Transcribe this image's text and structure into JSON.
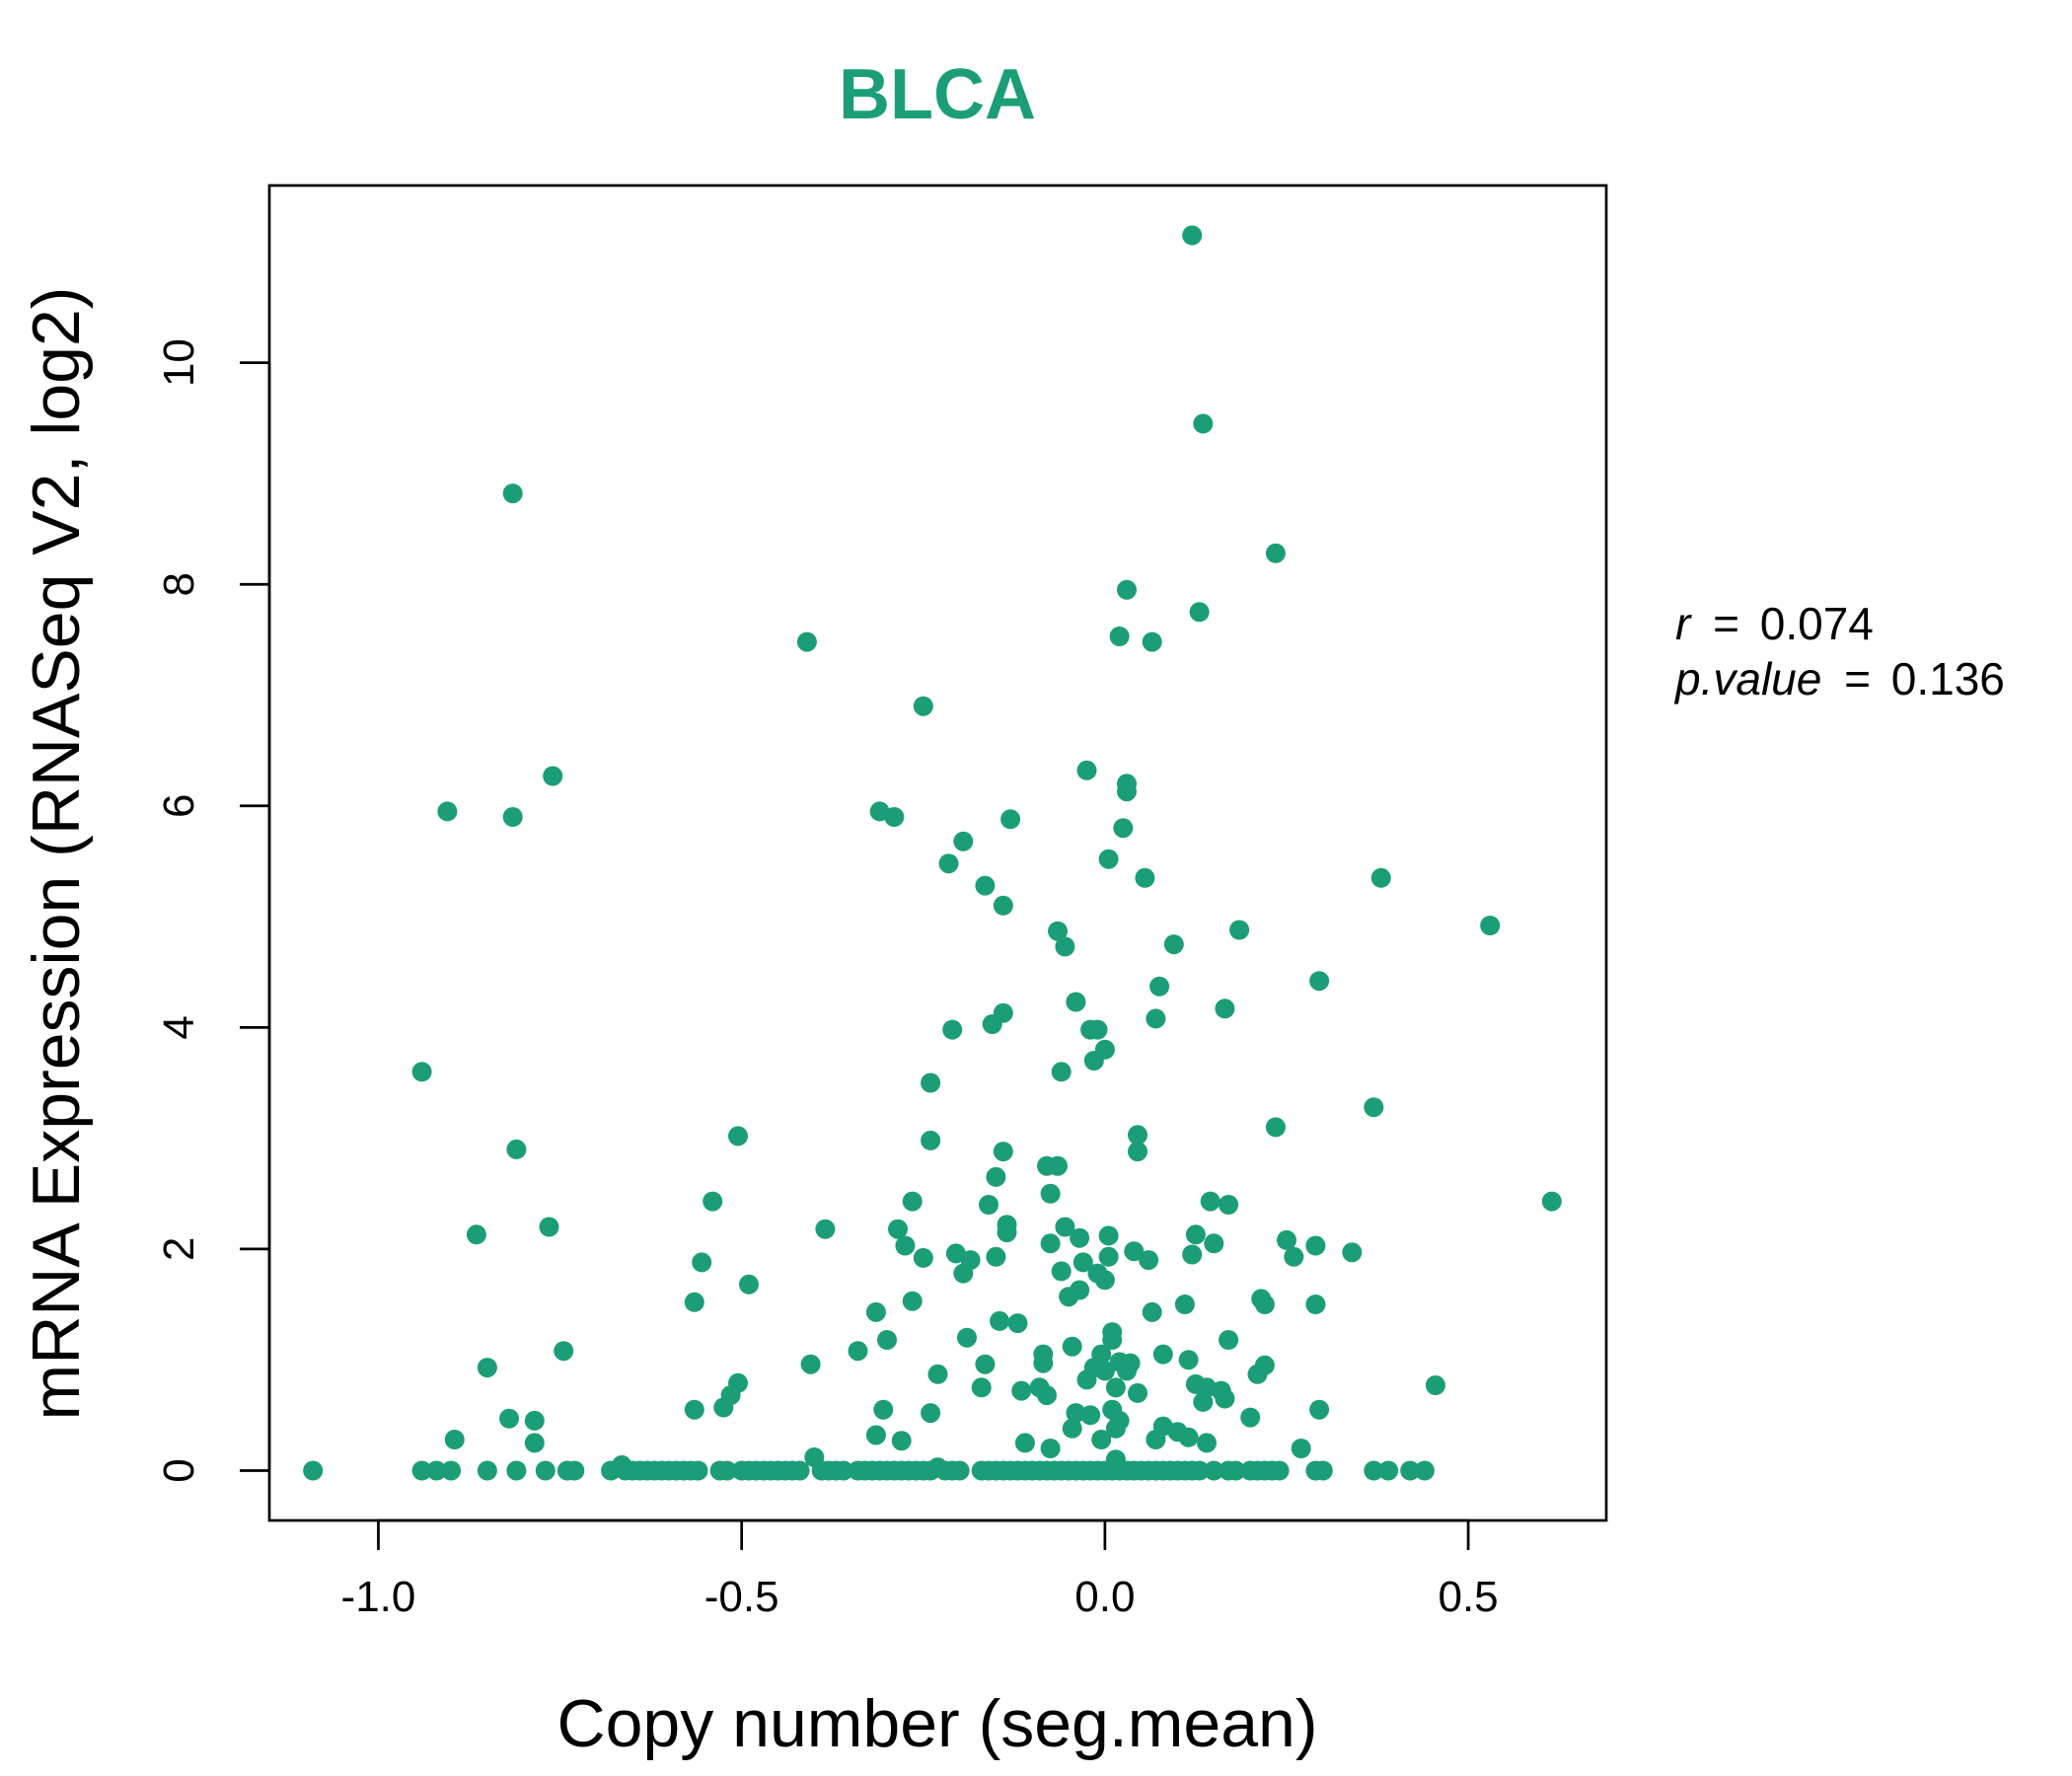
{
  "chart_data": {
    "type": "scatter",
    "title": "BLCA",
    "xlabel": "Copy number (seg.mean)",
    "ylabel": "mRNA Expression (RNASeq V2, log2)",
    "xlim": [
      -1.15,
      0.69
    ],
    "ylim": [
      -0.45,
      11.6
    ],
    "xticks": [
      -1.0,
      -0.5,
      0.0,
      0.5
    ],
    "xtick_labels": [
      "-1.0",
      "-0.5",
      "0.0",
      "0.5"
    ],
    "yticks": [
      0,
      2,
      4,
      6,
      8,
      10
    ],
    "ytick_labels": [
      "0",
      "2",
      "4",
      "6",
      "8",
      "10"
    ],
    "point_color": "#1b9e77",
    "grid": false,
    "legend": "none",
    "stats": {
      "r_label": "r",
      "r_value": "0.074",
      "p_label": "p.value",
      "p_value": "0.136",
      "equals": "="
    },
    "points": [
      [
        -1.09,
        0
      ],
      [
        -0.94,
        0
      ],
      [
        -0.92,
        0
      ],
      [
        -0.9,
        0
      ],
      [
        -0.85,
        0
      ],
      [
        -0.81,
        0
      ],
      [
        -0.77,
        0
      ],
      [
        -0.74,
        0
      ],
      [
        -0.73,
        0
      ],
      [
        -0.68,
        0
      ],
      [
        -0.665,
        0.05
      ],
      [
        -0.66,
        0
      ],
      [
        -0.65,
        0
      ],
      [
        -0.64,
        0
      ],
      [
        -0.63,
        0
      ],
      [
        -0.62,
        0
      ],
      [
        -0.61,
        0
      ],
      [
        -0.6,
        0
      ],
      [
        -0.59,
        0
      ],
      [
        -0.58,
        0
      ],
      [
        -0.57,
        0
      ],
      [
        -0.56,
        0
      ],
      [
        -0.53,
        0
      ],
      [
        -0.52,
        0
      ],
      [
        -0.5,
        0
      ],
      [
        -0.49,
        0
      ],
      [
        -0.48,
        0
      ],
      [
        -0.47,
        0
      ],
      [
        -0.46,
        0
      ],
      [
        -0.45,
        0
      ],
      [
        -0.44,
        0
      ],
      [
        -0.43,
        0
      ],
      [
        -0.42,
        0
      ],
      [
        -0.4,
        0.12
      ],
      [
        -0.39,
        0
      ],
      [
        -0.38,
        0
      ],
      [
        -0.37,
        0
      ],
      [
        -0.36,
        0
      ],
      [
        -0.34,
        0
      ],
      [
        -0.33,
        0
      ],
      [
        -0.32,
        0
      ],
      [
        -0.31,
        0
      ],
      [
        -0.3,
        0
      ],
      [
        -0.29,
        0
      ],
      [
        -0.28,
        0
      ],
      [
        -0.27,
        0
      ],
      [
        -0.26,
        0
      ],
      [
        -0.25,
        0
      ],
      [
        -0.24,
        0
      ],
      [
        -0.23,
        0.03
      ],
      [
        -0.22,
        0
      ],
      [
        -0.21,
        0
      ],
      [
        -0.2,
        0
      ],
      [
        -0.17,
        0
      ],
      [
        -0.16,
        0
      ],
      [
        -0.15,
        0
      ],
      [
        -0.14,
        0
      ],
      [
        -0.13,
        0
      ],
      [
        -0.12,
        0
      ],
      [
        -0.11,
        0
      ],
      [
        -0.1,
        0
      ],
      [
        -0.09,
        0
      ],
      [
        -0.08,
        0
      ],
      [
        -0.07,
        0
      ],
      [
        -0.06,
        0
      ],
      [
        -0.05,
        0
      ],
      [
        -0.04,
        0
      ],
      [
        -0.03,
        0
      ],
      [
        -0.02,
        0
      ],
      [
        -0.01,
        0
      ],
      [
        0.0,
        0
      ],
      [
        0.01,
        0
      ],
      [
        0.02,
        0
      ],
      [
        0.03,
        0
      ],
      [
        0.04,
        0
      ],
      [
        0.05,
        0
      ],
      [
        0.06,
        0
      ],
      [
        0.07,
        0
      ],
      [
        0.08,
        0
      ],
      [
        0.09,
        0
      ],
      [
        0.1,
        0
      ],
      [
        0.11,
        0
      ],
      [
        0.12,
        0
      ],
      [
        0.13,
        0
      ],
      [
        0.15,
        0
      ],
      [
        0.17,
        0
      ],
      [
        0.18,
        0
      ],
      [
        0.2,
        0
      ],
      [
        0.21,
        0
      ],
      [
        0.22,
        0
      ],
      [
        0.23,
        0
      ],
      [
        0.24,
        0
      ],
      [
        0.29,
        0
      ],
      [
        0.3,
        0
      ],
      [
        0.37,
        0
      ],
      [
        0.39,
        0
      ],
      [
        0.42,
        0
      ],
      [
        0.44,
        0
      ],
      [
        -0.94,
        3.6
      ],
      [
        -0.905,
        5.95
      ],
      [
        -0.895,
        0.28
      ],
      [
        -0.865,
        2.13
      ],
      [
        -0.85,
        0.93
      ],
      [
        -0.82,
        0.47
      ],
      [
        -0.815,
        8.82
      ],
      [
        -0.815,
        5.9
      ],
      [
        -0.81,
        2.9
      ],
      [
        -0.785,
        0.45
      ],
      [
        -0.785,
        0.25
      ],
      [
        -0.765,
        2.2
      ],
      [
        -0.76,
        6.27
      ],
      [
        -0.745,
        1.08
      ],
      [
        -0.565,
        0.55
      ],
      [
        -0.565,
        1.52
      ],
      [
        -0.555,
        1.88
      ],
      [
        -0.54,
        2.43
      ],
      [
        -0.525,
        0.57
      ],
      [
        -0.515,
        0.68
      ],
      [
        -0.505,
        0.79
      ],
      [
        -0.505,
        3.02
      ],
      [
        -0.49,
        1.68
      ],
      [
        -0.41,
        7.48
      ],
      [
        -0.405,
        0.96
      ],
      [
        -0.385,
        2.18
      ],
      [
        -0.34,
        1.08
      ],
      [
        -0.315,
        0.32
      ],
      [
        -0.315,
        1.43
      ],
      [
        -0.31,
        5.95
      ],
      [
        -0.305,
        0.55
      ],
      [
        -0.3,
        1.18
      ],
      [
        -0.29,
        5.9
      ],
      [
        -0.285,
        2.18
      ],
      [
        -0.28,
        0.27
      ],
      [
        -0.275,
        2.03
      ],
      [
        -0.265,
        2.43
      ],
      [
        -0.265,
        1.53
      ],
      [
        -0.25,
        1.92
      ],
      [
        -0.25,
        6.9
      ],
      [
        -0.24,
        3.5
      ],
      [
        -0.24,
        2.98
      ],
      [
        -0.24,
        0.52
      ],
      [
        -0.23,
        0.87
      ],
      [
        -0.215,
        5.48
      ],
      [
        -0.21,
        3.98
      ],
      [
        -0.205,
        1.96
      ],
      [
        -0.195,
        5.68
      ],
      [
        -0.195,
        1.78
      ],
      [
        -0.19,
        1.2
      ],
      [
        -0.185,
        1.9
      ],
      [
        -0.17,
        0.75
      ],
      [
        -0.165,
        0.96
      ],
      [
        -0.165,
        5.28
      ],
      [
        -0.16,
        2.4
      ],
      [
        -0.155,
        4.03
      ],
      [
        -0.15,
        1.93
      ],
      [
        -0.15,
        2.65
      ],
      [
        -0.145,
        1.35
      ],
      [
        -0.14,
        2.88
      ],
      [
        -0.14,
        5.1
      ],
      [
        -0.14,
        4.13
      ],
      [
        -0.135,
        2.22
      ],
      [
        -0.135,
        2.15
      ],
      [
        -0.13,
        5.88
      ],
      [
        -0.12,
        1.33
      ],
      [
        -0.115,
        0.72
      ],
      [
        -0.11,
        0.25
      ],
      [
        -0.09,
        0.75
      ],
      [
        -0.085,
        1.05
      ],
      [
        -0.085,
        0.97
      ],
      [
        -0.08,
        2.75
      ],
      [
        -0.08,
        0.68
      ],
      [
        -0.075,
        0.2
      ],
      [
        -0.075,
        2.5
      ],
      [
        -0.075,
        2.05
      ],
      [
        -0.065,
        2.75
      ],
      [
        -0.065,
        4.87
      ],
      [
        -0.06,
        3.6
      ],
      [
        -0.06,
        1.8
      ],
      [
        -0.055,
        4.73
      ],
      [
        -0.055,
        2.2
      ],
      [
        -0.05,
        1.57
      ],
      [
        -0.045,
        0.38
      ],
      [
        -0.045,
        1.12
      ],
      [
        -0.04,
        0.52
      ],
      [
        -0.04,
        4.23
      ],
      [
        -0.035,
        2.1
      ],
      [
        -0.035,
        1.63
      ],
      [
        -0.03,
        1.88
      ],
      [
        -0.025,
        6.32
      ],
      [
        -0.025,
        0.82
      ],
      [
        -0.02,
        3.98
      ],
      [
        -0.02,
        0.5
      ],
      [
        -0.015,
        3.7
      ],
      [
        -0.015,
        0.93
      ],
      [
        -0.01,
        3.98
      ],
      [
        -0.01,
        1.78
      ],
      [
        -0.005,
        1.05
      ],
      [
        -0.005,
        0.28
      ],
      [
        0.0,
        3.8
      ],
      [
        0.0,
        1.72
      ],
      [
        0.0,
        0.9
      ],
      [
        0.005,
        5.52
      ],
      [
        0.005,
        1.93
      ],
      [
        0.005,
        2.12
      ],
      [
        0.01,
        1.25
      ],
      [
        0.01,
        1.18
      ],
      [
        0.01,
        0.55
      ],
      [
        0.015,
        0.75
      ],
      [
        0.015,
        0.38
      ],
      [
        0.015,
        0.1
      ],
      [
        0.02,
        7.53
      ],
      [
        0.02,
        0.98
      ],
      [
        0.02,
        0.45
      ],
      [
        0.025,
        5.8
      ],
      [
        0.03,
        6.2
      ],
      [
        0.03,
        6.13
      ],
      [
        0.03,
        7.95
      ],
      [
        0.03,
        0.9
      ],
      [
        0.035,
        0.97
      ],
      [
        0.04,
        1.98
      ],
      [
        0.045,
        0.7
      ],
      [
        0.045,
        3.03
      ],
      [
        0.045,
        2.88
      ],
      [
        0.055,
        5.35
      ],
      [
        0.06,
        1.9
      ],
      [
        0.065,
        1.43
      ],
      [
        0.065,
        7.48
      ],
      [
        0.07,
        4.08
      ],
      [
        0.07,
        0.28
      ],
      [
        0.075,
        4.37
      ],
      [
        0.08,
        1.05
      ],
      [
        0.08,
        0.4
      ],
      [
        0.095,
        4.75
      ],
      [
        0.1,
        0.35
      ],
      [
        0.11,
        1.5
      ],
      [
        0.115,
        0.3
      ],
      [
        0.115,
        1.0
      ],
      [
        0.12,
        11.15
      ],
      [
        0.12,
        1.95
      ],
      [
        0.125,
        0.78
      ],
      [
        0.125,
        2.13
      ],
      [
        0.13,
        7.75
      ],
      [
        0.135,
        9.45
      ],
      [
        0.135,
        0.62
      ],
      [
        0.14,
        0.75
      ],
      [
        0.14,
        0.25
      ],
      [
        0.145,
        2.43
      ],
      [
        0.15,
        2.05
      ],
      [
        0.16,
        0.72
      ],
      [
        0.165,
        0.65
      ],
      [
        0.165,
        4.17
      ],
      [
        0.17,
        1.18
      ],
      [
        0.17,
        2.4
      ],
      [
        0.185,
        4.88
      ],
      [
        0.2,
        0.48
      ],
      [
        0.21,
        0.87
      ],
      [
        0.215,
        1.55
      ],
      [
        0.22,
        1.5
      ],
      [
        0.22,
        0.95
      ],
      [
        0.235,
        8.28
      ],
      [
        0.235,
        3.1
      ],
      [
        0.25,
        2.08
      ],
      [
        0.26,
        1.93
      ],
      [
        0.27,
        0.2
      ],
      [
        0.29,
        2.03
      ],
      [
        0.29,
        1.5
      ],
      [
        0.295,
        4.42
      ],
      [
        0.295,
        0.55
      ],
      [
        0.34,
        1.97
      ],
      [
        0.37,
        3.28
      ],
      [
        0.38,
        5.35
      ],
      [
        0.455,
        0.77
      ],
      [
        0.53,
        4.92
      ],
      [
        0.615,
        2.43
      ]
    ]
  }
}
